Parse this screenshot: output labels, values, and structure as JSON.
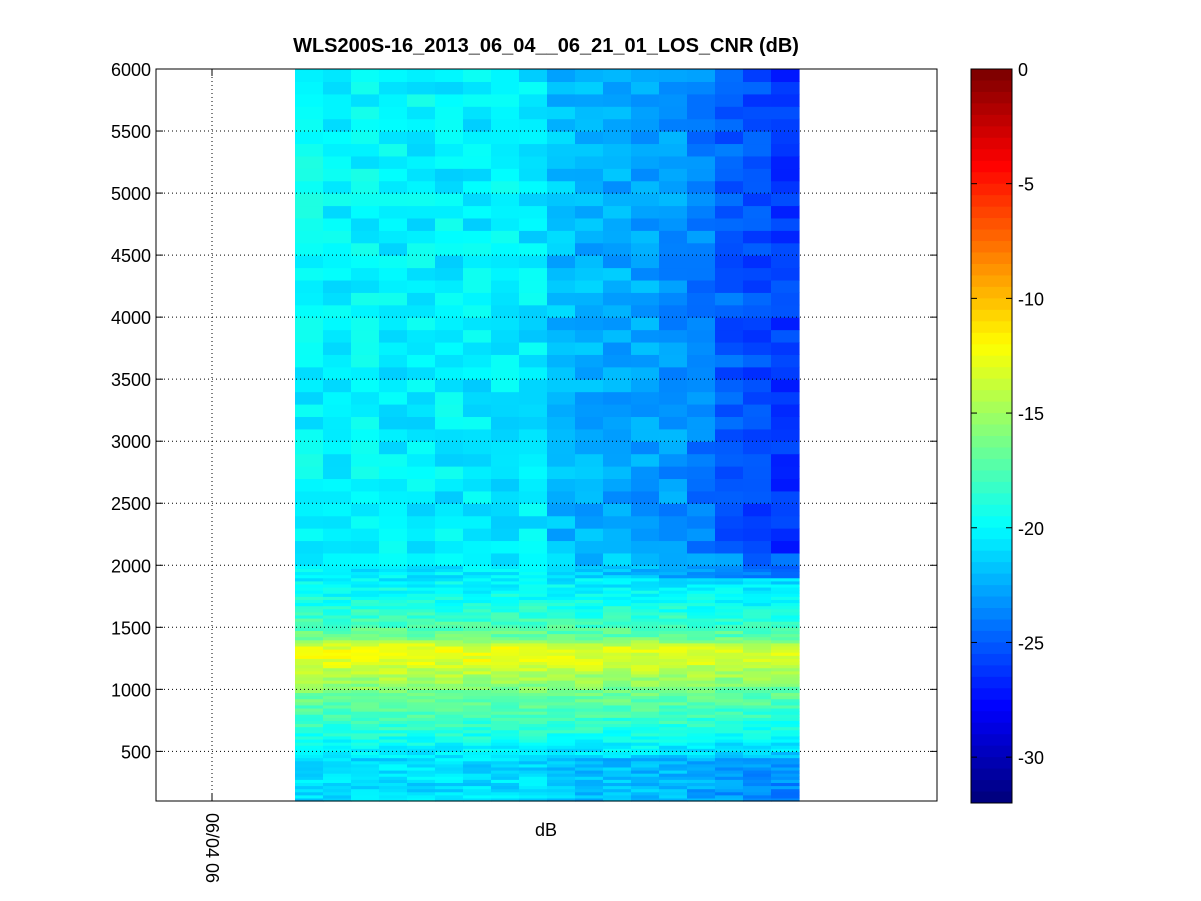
{
  "chart_data": {
    "type": "heatmap",
    "title": "WLS200S-16_2013_06_04__06_21_01_LOS_CNR (dB)",
    "xlabel": "dB",
    "x_tick_labels": [
      "06/04 06"
    ],
    "y_ticks": [
      500,
      1000,
      1500,
      2000,
      2500,
      3000,
      3500,
      4000,
      4500,
      5000,
      5500,
      6000
    ],
    "ylim": [
      100,
      6000
    ],
    "grid": true,
    "colormap": "jet",
    "colorbar": {
      "clim": [
        -32,
        0
      ],
      "ticks": [
        0,
        -5,
        -10,
        -15,
        -20,
        -25,
        -30
      ]
    },
    "heatmap": {
      "columns": 18,
      "column_trend_db": [
        -20.2,
        -20.3,
        -20.3,
        -20.4,
        -20.4,
        -20.5,
        -20.6,
        -20.6,
        -20.7,
        -22.0,
        -22.3,
        -22.6,
        -22.9,
        -23.2,
        -24.0,
        -25.0,
        -25.8,
        -26.3
      ],
      "vertical_profile": [
        {
          "range": 100,
          "cnr_db": -21.0
        },
        {
          "range": 450,
          "cnr_db": -21.0
        },
        {
          "range": 700,
          "cnr_db": -18.5
        },
        {
          "range": 1000,
          "cnr_db": -16.0
        },
        {
          "range": 1150,
          "cnr_db": -14.0
        },
        {
          "range": 1250,
          "cnr_db": -12.5
        },
        {
          "range": 1350,
          "cnr_db": -13.0
        },
        {
          "range": 1420,
          "cnr_db": -16.5
        },
        {
          "range": 1600,
          "cnr_db": -18.5
        },
        {
          "range": 1900,
          "cnr_db": -20.5
        },
        {
          "range": 6000,
          "cnr_db": -20.3
        }
      ]
    }
  },
  "colors": {
    "background": "#ffffff",
    "axes": "#000000",
    "grid": "#000000"
  }
}
